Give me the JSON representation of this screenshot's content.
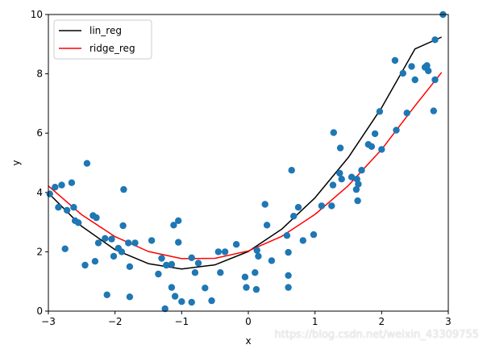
{
  "chart_data": {
    "type": "scatter",
    "title": "",
    "xlabel": "x",
    "ylabel": "y",
    "xlim": [
      -3,
      3
    ],
    "ylim": [
      0,
      10
    ],
    "x_ticks": [
      -3,
      -2,
      -1,
      0,
      1,
      2,
      3
    ],
    "y_ticks": [
      0,
      2,
      4,
      6,
      8,
      10
    ],
    "grid": false,
    "legend_placement": "upper-left",
    "scatter": {
      "color": "#1f77b4",
      "points": [
        [
          -2.98,
          3.95
        ],
        [
          -2.9,
          4.18
        ],
        [
          -2.85,
          3.5
        ],
        [
          -2.8,
          4.25
        ],
        [
          -2.75,
          2.1
        ],
        [
          -2.72,
          3.4
        ],
        [
          -2.65,
          4.33
        ],
        [
          -2.62,
          3.5
        ],
        [
          -2.6,
          3.05
        ],
        [
          -2.55,
          2.98
        ],
        [
          -2.45,
          1.55
        ],
        [
          -2.42,
          4.98
        ],
        [
          -2.33,
          3.22
        ],
        [
          -2.3,
          1.68
        ],
        [
          -2.28,
          3.15
        ],
        [
          -2.25,
          2.3
        ],
        [
          -2.15,
          2.45
        ],
        [
          -2.12,
          0.55
        ],
        [
          -2.05,
          2.43
        ],
        [
          -2.02,
          1.85
        ],
        [
          -1.95,
          2.12
        ],
        [
          -1.9,
          2.0
        ],
        [
          -1.88,
          2.88
        ],
        [
          -1.87,
          4.1
        ],
        [
          -1.8,
          2.3
        ],
        [
          -1.78,
          1.5
        ],
        [
          -1.78,
          0.48
        ],
        [
          -1.7,
          2.3
        ],
        [
          -1.45,
          2.38
        ],
        [
          -1.35,
          1.25
        ],
        [
          -1.3,
          1.78
        ],
        [
          -1.25,
          0.08
        ],
        [
          -1.23,
          1.55
        ],
        [
          -1.15,
          1.58
        ],
        [
          -1.15,
          0.8
        ],
        [
          -1.12,
          2.9
        ],
        [
          -1.1,
          0.5
        ],
        [
          -1.05,
          3.05
        ],
        [
          -1.05,
          2.32
        ],
        [
          -1.0,
          0.32
        ],
        [
          -0.85,
          0.3
        ],
        [
          -0.85,
          1.8
        ],
        [
          -0.8,
          1.3
        ],
        [
          -0.75,
          1.62
        ],
        [
          -0.65,
          0.78
        ],
        [
          -0.55,
          0.35
        ],
        [
          -0.45,
          2.0
        ],
        [
          -0.42,
          1.3
        ],
        [
          -0.35,
          2.0
        ],
        [
          -0.18,
          2.25
        ],
        [
          -0.05,
          1.15
        ],
        [
          -0.03,
          0.8
        ],
        [
          0.1,
          1.3
        ],
        [
          0.12,
          0.73
        ],
        [
          0.15,
          1.85
        ],
        [
          0.13,
          2.05
        ],
        [
          0.25,
          3.6
        ],
        [
          0.28,
          2.9
        ],
        [
          0.35,
          1.7
        ],
        [
          0.58,
          2.55
        ],
        [
          0.6,
          1.98
        ],
        [
          0.6,
          0.8
        ],
        [
          0.6,
          1.2
        ],
        [
          0.65,
          4.75
        ],
        [
          0.68,
          3.2
        ],
        [
          0.75,
          3.5
        ],
        [
          0.82,
          2.38
        ],
        [
          0.98,
          2.58
        ],
        [
          1.1,
          3.55
        ],
        [
          1.25,
          3.55
        ],
        [
          1.27,
          4.25
        ],
        [
          1.28,
          6.02
        ],
        [
          1.37,
          4.65
        ],
        [
          1.38,
          5.5
        ],
        [
          1.4,
          4.45
        ],
        [
          1.55,
          4.52
        ],
        [
          1.62,
          4.1
        ],
        [
          1.63,
          4.45
        ],
        [
          1.64,
          3.72
        ],
        [
          1.65,
          4.28
        ],
        [
          1.7,
          4.75
        ],
        [
          1.8,
          5.62
        ],
        [
          1.85,
          5.55
        ],
        [
          1.9,
          5.98
        ],
        [
          1.97,
          6.73
        ],
        [
          2.0,
          5.45
        ],
        [
          2.2,
          8.45
        ],
        [
          2.22,
          6.1
        ],
        [
          2.32,
          8.02
        ],
        [
          2.38,
          6.68
        ],
        [
          2.45,
          8.25
        ],
        [
          2.5,
          7.8
        ],
        [
          2.65,
          8.22
        ],
        [
          2.68,
          8.28
        ],
        [
          2.7,
          8.1
        ],
        [
          2.78,
          6.75
        ],
        [
          2.8,
          7.8
        ],
        [
          2.8,
          9.15
        ],
        [
          2.92,
          10.0
        ]
      ]
    },
    "series": [
      {
        "name": "lin_reg",
        "color": "#000000",
        "x": [
          -3,
          -2.5,
          -2,
          -1.5,
          -1,
          -0.5,
          0,
          0.5,
          1,
          1.5,
          2,
          2.5,
          2.9
        ],
        "y": [
          3.98,
          2.86,
          2.07,
          1.6,
          1.42,
          1.56,
          2.01,
          2.76,
          3.82,
          5.18,
          6.86,
          8.84,
          9.24
        ]
      },
      {
        "name": "ridge_reg",
        "color": "#ff0000",
        "x": [
          -3,
          -2.5,
          -2,
          -1.5,
          -1,
          -0.5,
          0,
          0.5,
          1,
          1.5,
          2,
          2.5,
          2.9
        ],
        "y": [
          4.22,
          3.25,
          2.51,
          2.01,
          1.77,
          1.78,
          2.03,
          2.52,
          3.26,
          4.23,
          5.45,
          6.92,
          8.05
        ]
      }
    ]
  },
  "watermark": "https://blog.csdn.net/weixin_43309755"
}
